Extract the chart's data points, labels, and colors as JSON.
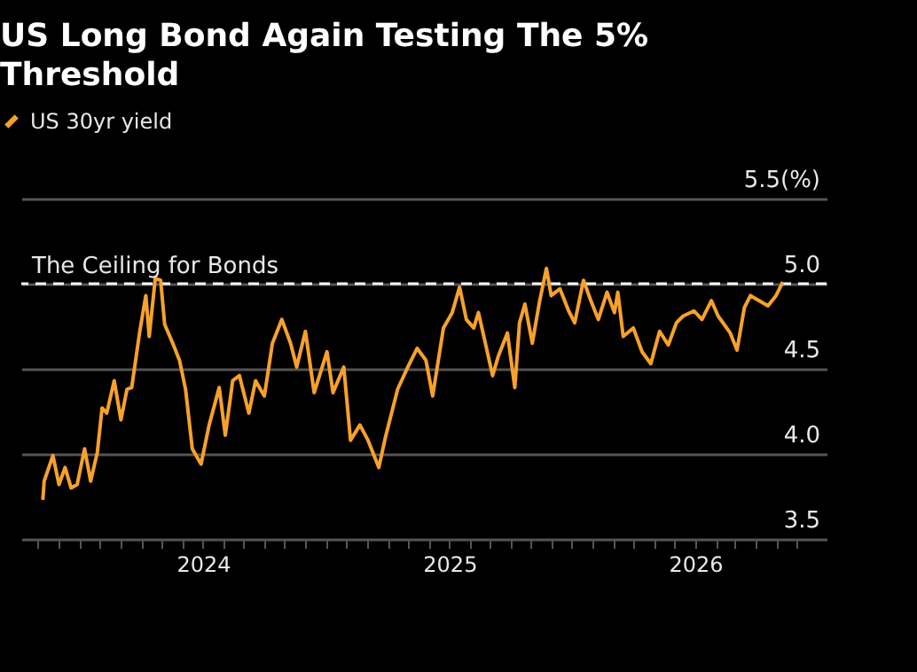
{
  "chart_data": {
    "type": "line",
    "title": "US Long Bond Again Testing The 5% Threshold",
    "series": [
      {
        "name": "US 30yr yield",
        "color": "#f7a12b",
        "x": [
          "2023-05-08",
          "2023-05-10",
          "2023-05-23",
          "2023-06-01",
          "2023-06-10",
          "2023-06-19",
          "2023-06-28",
          "2023-07-09",
          "2023-07-18",
          "2023-07-28",
          "2023-08-04",
          "2023-08-11",
          "2023-08-22",
          "2023-09-01",
          "2023-09-10",
          "2023-09-17",
          "2023-09-29",
          "2023-10-08",
          "2023-10-13",
          "2023-10-22",
          "2023-10-30",
          "2023-11-05",
          "2023-11-17",
          "2023-11-27",
          "2023-12-06",
          "2023-12-16",
          "2023-12-29",
          "2024-01-10",
          "2024-01-25",
          "2024-02-03",
          "2024-02-14",
          "2024-02-24",
          "2024-03-09",
          "2024-03-19",
          "2024-04-01",
          "2024-04-13",
          "2024-04-27",
          "2024-05-10",
          "2024-05-19",
          "2024-06-01",
          "2024-06-14",
          "2024-07-03",
          "2024-07-12",
          "2024-07-28",
          "2024-08-07",
          "2024-08-21",
          "2024-09-02",
          "2024-09-18",
          "2024-09-28",
          "2024-10-16",
          "2024-10-31",
          "2024-11-14",
          "2024-11-27",
          "2024-12-07",
          "2024-12-23",
          "2025-01-05",
          "2025-01-16",
          "2025-01-26",
          "2025-02-06",
          "2025-02-13",
          "2025-02-21",
          "2025-03-06",
          "2025-03-15",
          "2025-03-28",
          "2025-04-08",
          "2025-04-15",
          "2025-04-23",
          "2025-05-04",
          "2025-05-15",
          "2025-05-25",
          "2025-06-01",
          "2025-06-14",
          "2025-06-27",
          "2025-07-06",
          "2025-07-19",
          "2025-07-30",
          "2025-08-10",
          "2025-08-23",
          "2025-09-03",
          "2025-09-08",
          "2025-09-16",
          "2025-10-01",
          "2025-10-14",
          "2025-10-27",
          "2025-11-09",
          "2025-11-22",
          "2025-12-04",
          "2025-12-14",
          "2025-12-30",
          "2026-01-11",
          "2026-01-25",
          "2026-02-04",
          "2026-02-22",
          "2026-03-04",
          "2026-03-15",
          "2026-03-24",
          "2026-04-06",
          "2026-04-19",
          "2026-05-01",
          "2026-05-11"
        ],
        "values": [
          3.73,
          3.84,
          3.99,
          3.82,
          3.92,
          3.8,
          3.82,
          4.03,
          3.84,
          4.01,
          4.27,
          4.24,
          4.43,
          4.2,
          4.38,
          4.39,
          4.72,
          4.93,
          4.69,
          5.03,
          5.02,
          4.76,
          4.65,
          4.55,
          4.38,
          4.03,
          3.94,
          4.17,
          4.39,
          4.11,
          4.43,
          4.46,
          4.24,
          4.43,
          4.34,
          4.65,
          4.79,
          4.65,
          4.51,
          4.72,
          4.36,
          4.6,
          4.36,
          4.51,
          4.08,
          4.17,
          4.08,
          3.92,
          4.1,
          4.38,
          4.51,
          4.62,
          4.55,
          4.34,
          4.74,
          4.83,
          4.98,
          4.79,
          4.74,
          4.83,
          4.69,
          4.46,
          4.58,
          4.71,
          4.39,
          4.77,
          4.88,
          4.65,
          4.9,
          5.09,
          4.93,
          4.97,
          4.84,
          4.77,
          5.02,
          4.9,
          4.79,
          4.95,
          4.83,
          4.95,
          4.69,
          4.74,
          4.6,
          4.53,
          4.72,
          4.64,
          4.77,
          4.81,
          4.84,
          4.79,
          4.9,
          4.81,
          4.71,
          4.61,
          4.86,
          4.93,
          4.9,
          4.87,
          4.93,
          5.01
        ]
      }
    ],
    "xlim": [
      "2023-04-06",
      "2026-07-15"
    ],
    "xticks": [
      {
        "value": "2023-05-01",
        "label": null
      },
      {
        "value": "2023-06-01",
        "label": null
      },
      {
        "value": "2023-07-01",
        "label": null
      },
      {
        "value": "2023-08-01",
        "label": null
      },
      {
        "value": "2023-09-01",
        "label": null
      },
      {
        "value": "2023-10-01",
        "label": null
      },
      {
        "value": "2023-11-01",
        "label": null
      },
      {
        "value": "2023-12-01",
        "label": null
      },
      {
        "value": "2024-01-01",
        "label": "2024"
      },
      {
        "value": "2024-02-01",
        "label": null
      },
      {
        "value": "2024-03-01",
        "label": null
      },
      {
        "value": "2024-04-01",
        "label": null
      },
      {
        "value": "2024-05-01",
        "label": null
      },
      {
        "value": "2024-06-01",
        "label": null
      },
      {
        "value": "2024-07-01",
        "label": null
      },
      {
        "value": "2024-08-01",
        "label": null
      },
      {
        "value": "2024-09-01",
        "label": null
      },
      {
        "value": "2024-10-01",
        "label": null
      },
      {
        "value": "2024-11-01",
        "label": null
      },
      {
        "value": "2024-12-01",
        "label": null
      },
      {
        "value": "2025-01-01",
        "label": "2025"
      },
      {
        "value": "2025-02-01",
        "label": null
      },
      {
        "value": "2025-03-01",
        "label": null
      },
      {
        "value": "2025-04-01",
        "label": null
      },
      {
        "value": "2025-05-01",
        "label": null
      },
      {
        "value": "2025-06-01",
        "label": null
      },
      {
        "value": "2025-07-01",
        "label": null
      },
      {
        "value": "2025-08-01",
        "label": null
      },
      {
        "value": "2025-09-01",
        "label": null
      },
      {
        "value": "2025-10-01",
        "label": null
      },
      {
        "value": "2025-11-01",
        "label": null
      },
      {
        "value": "2025-12-01",
        "label": null
      },
      {
        "value": "2026-01-01",
        "label": "2026"
      },
      {
        "value": "2026-02-01",
        "label": null
      },
      {
        "value": "2026-03-01",
        "label": null
      },
      {
        "value": "2026-04-01",
        "label": null
      },
      {
        "value": "2026-05-01",
        "label": null
      },
      {
        "value": "2026-06-01",
        "label": null
      }
    ],
    "ylim": [
      3.5,
      5.5
    ],
    "yticks": [
      3.5,
      {
        "value": 4.0,
        "label": "4.0"
      },
      4.5,
      {
        "value": 5.0,
        "label": "5.0"
      },
      {
        "value": 5.5,
        "label": "5.5(%)"
      }
    ],
    "ref_lines": [
      {
        "axis": "y",
        "value": 5.0,
        "label": "The Ceiling for Bonds",
        "color": "#ffffff",
        "line_style": "dashed"
      }
    ],
    "grid": "y",
    "legend": "top left",
    "marker": "none",
    "line_style": "solid"
  }
}
